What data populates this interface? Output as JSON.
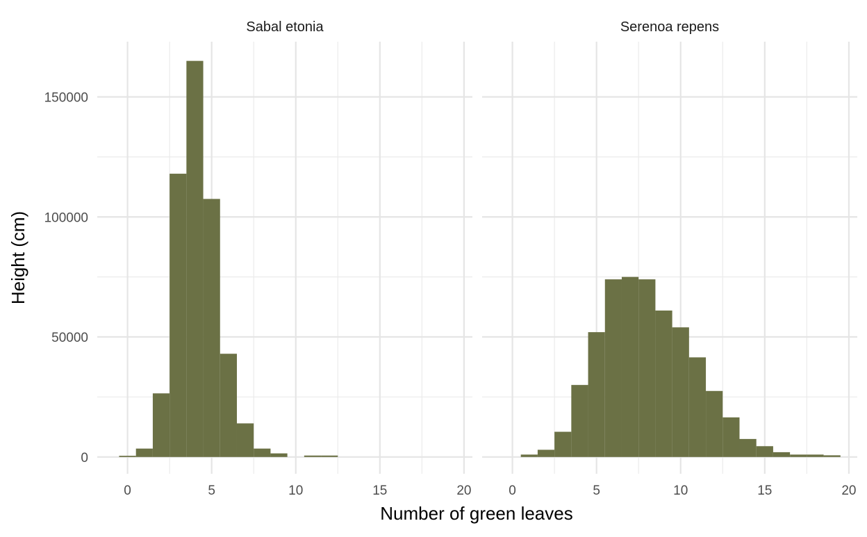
{
  "chart_data": {
    "type": "bar",
    "xlabel": "Number of green leaves",
    "ylabel": "Height (cm)",
    "xlim": [
      -1.8,
      20.5
    ],
    "ylim": [
      -7000,
      173000
    ],
    "x_ticks": [
      0,
      5,
      10,
      15,
      20
    ],
    "y_ticks": [
      0,
      50000,
      100000,
      150000
    ],
    "x_tick_labels": [
      "0",
      "5",
      "10",
      "15",
      "20"
    ],
    "y_tick_labels": [
      "0",
      "50000",
      "100000",
      "150000"
    ],
    "bin_width": 1,
    "grid": true,
    "bar_color": "#6b7145",
    "panels": [
      {
        "title": "Sabal etonia",
        "bins": [
          {
            "x": 0,
            "value": 500
          },
          {
            "x": 1,
            "value": 3500
          },
          {
            "x": 2,
            "value": 26500
          },
          {
            "x": 3,
            "value": 118000
          },
          {
            "x": 4,
            "value": 165000
          },
          {
            "x": 5,
            "value": 107500
          },
          {
            "x": 6,
            "value": 43000
          },
          {
            "x": 7,
            "value": 14000
          },
          {
            "x": 8,
            "value": 3500
          },
          {
            "x": 9,
            "value": 1500
          },
          {
            "x": 11,
            "value": 600
          },
          {
            "x": 12,
            "value": 600
          }
        ]
      },
      {
        "title": "Serenoa repens",
        "bins": [
          {
            "x": 1,
            "value": 1000
          },
          {
            "x": 2,
            "value": 3000
          },
          {
            "x": 3,
            "value": 10500
          },
          {
            "x": 4,
            "value": 30000
          },
          {
            "x": 5,
            "value": 52000
          },
          {
            "x": 6,
            "value": 74000
          },
          {
            "x": 7,
            "value": 75000
          },
          {
            "x": 8,
            "value": 74000
          },
          {
            "x": 9,
            "value": 61000
          },
          {
            "x": 10,
            "value": 54000
          },
          {
            "x": 11,
            "value": 41500
          },
          {
            "x": 12,
            "value": 27500
          },
          {
            "x": 13,
            "value": 16500
          },
          {
            "x": 14,
            "value": 7500
          },
          {
            "x": 15,
            "value": 4500
          },
          {
            "x": 16,
            "value": 2000
          },
          {
            "x": 17,
            "value": 1000
          },
          {
            "x": 18,
            "value": 1000
          },
          {
            "x": 19,
            "value": 700
          }
        ]
      }
    ]
  }
}
